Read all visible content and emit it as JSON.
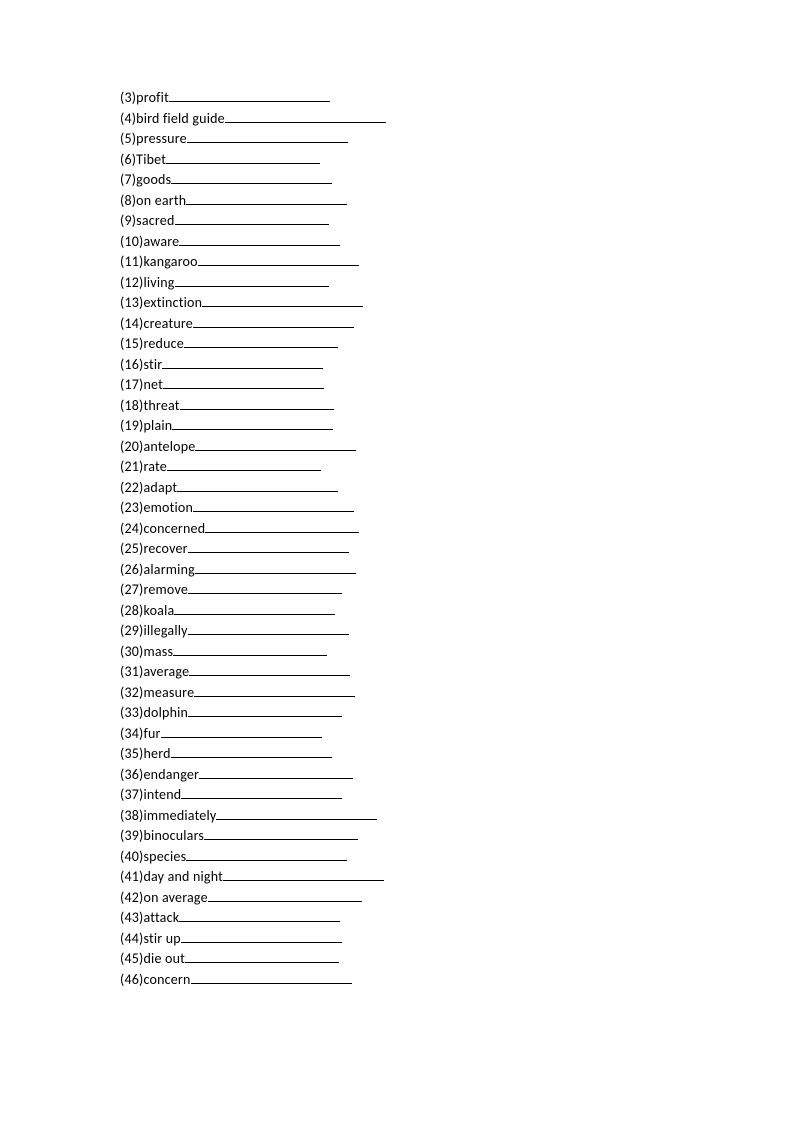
{
  "items": [
    {
      "num": "3",
      "word": "profit",
      "blank_width": 161
    },
    {
      "num": "4",
      "word": "bird field guide",
      "blank_width": 161
    },
    {
      "num": "5",
      "word": "pressure",
      "blank_width": 161
    },
    {
      "num": "6",
      "word": "Tibet",
      "blank_width": 154
    },
    {
      "num": "7",
      "word": "goods",
      "blank_width": 161
    },
    {
      "num": "8",
      "word": "on earth",
      "blank_width": 161
    },
    {
      "num": "9",
      "word": "sacred",
      "blank_width": 154
    },
    {
      "num": "10",
      "word": "aware",
      "blank_width": 161
    },
    {
      "num": "11",
      "word": "kangaroo",
      "blank_width": 161
    },
    {
      "num": "12",
      "word": "living",
      "blank_width": 154
    },
    {
      "num": "13",
      "word": "extinction",
      "blank_width": 161
    },
    {
      "num": "14",
      "word": "creature",
      "blank_width": 161
    },
    {
      "num": "15",
      "word": "reduce",
      "blank_width": 154
    },
    {
      "num": "16",
      "word": "stir",
      "blank_width": 161
    },
    {
      "num": "17",
      "word": "net",
      "blank_width": 161
    },
    {
      "num": "18",
      "word": "threat",
      "blank_width": 154
    },
    {
      "num": "19",
      "word": "plain",
      "blank_width": 161
    },
    {
      "num": "20",
      "word": "antelope",
      "blank_width": 161
    },
    {
      "num": "21",
      "word": "rate",
      "blank_width": 154
    },
    {
      "num": "22",
      "word": "adapt",
      "blank_width": 161
    },
    {
      "num": "23",
      "word": "emotion",
      "blank_width": 161
    },
    {
      "num": "24",
      "word": "concerned",
      "blank_width": 154
    },
    {
      "num": "25",
      "word": "recover",
      "blank_width": 161
    },
    {
      "num": "26",
      "word": "alarming",
      "blank_width": 161
    },
    {
      "num": "27",
      "word": "remove",
      "blank_width": 154
    },
    {
      "num": "28",
      "word": "koala",
      "blank_width": 161
    },
    {
      "num": "29",
      "word": "illegally",
      "blank_width": 161
    },
    {
      "num": "30",
      "word": "mass",
      "blank_width": 154
    },
    {
      "num": "31",
      "word": "average",
      "blank_width": 161
    },
    {
      "num": "32",
      "word": "measure",
      "blank_width": 161
    },
    {
      "num": "33",
      "word": "dolphin",
      "blank_width": 154
    },
    {
      "num": "34",
      "word": "fur",
      "blank_width": 161
    },
    {
      "num": "35",
      "word": "herd",
      "blank_width": 161
    },
    {
      "num": "36",
      "word": "endanger",
      "blank_width": 154
    },
    {
      "num": "37",
      "word": "intend",
      "blank_width": 161
    },
    {
      "num": "38",
      "word": "immediately",
      "blank_width": 161
    },
    {
      "num": "39",
      "word": "binoculars",
      "blank_width": 154
    },
    {
      "num": "40",
      "word": "species",
      "blank_width": 161
    },
    {
      "num": "41",
      "word": "day and night",
      "blank_width": 161
    },
    {
      "num": "42",
      "word": "on average",
      "blank_width": 154
    },
    {
      "num": "43",
      "word": "attack",
      "blank_width": 161
    },
    {
      "num": "44",
      "word": "stir up",
      "blank_width": 161
    },
    {
      "num": "45",
      "word": "die out",
      "blank_width": 154
    },
    {
      "num": "46",
      "word": "concern",
      "blank_width": 161
    }
  ]
}
